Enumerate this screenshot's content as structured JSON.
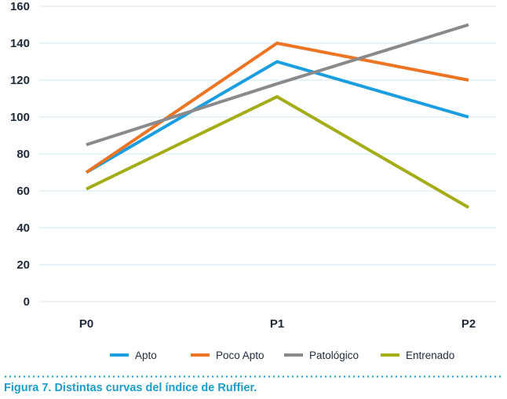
{
  "caption": "Figura 7. Distintas curvas del índice de Ruffier.",
  "chart_data": {
    "type": "line",
    "categories": [
      "P0",
      "P1",
      "P2"
    ],
    "ylim": [
      0,
      160
    ],
    "yticks": [
      0,
      20,
      40,
      60,
      80,
      100,
      120,
      140,
      160
    ],
    "grid": true,
    "legend_position": "bottom",
    "series": [
      {
        "name": "Apto",
        "values": [
          70,
          130,
          100
        ],
        "color": "#1a9ee0"
      },
      {
        "name": "Poco Apto",
        "values": [
          70,
          140,
          120
        ],
        "color": "#ec7422"
      },
      {
        "name": "Patológico",
        "values": [
          85,
          118,
          150
        ],
        "color": "#8a8a8c"
      },
      {
        "name": "Entrenado",
        "values": [
          61,
          111,
          51
        ],
        "color": "#a3ad15"
      }
    ]
  }
}
